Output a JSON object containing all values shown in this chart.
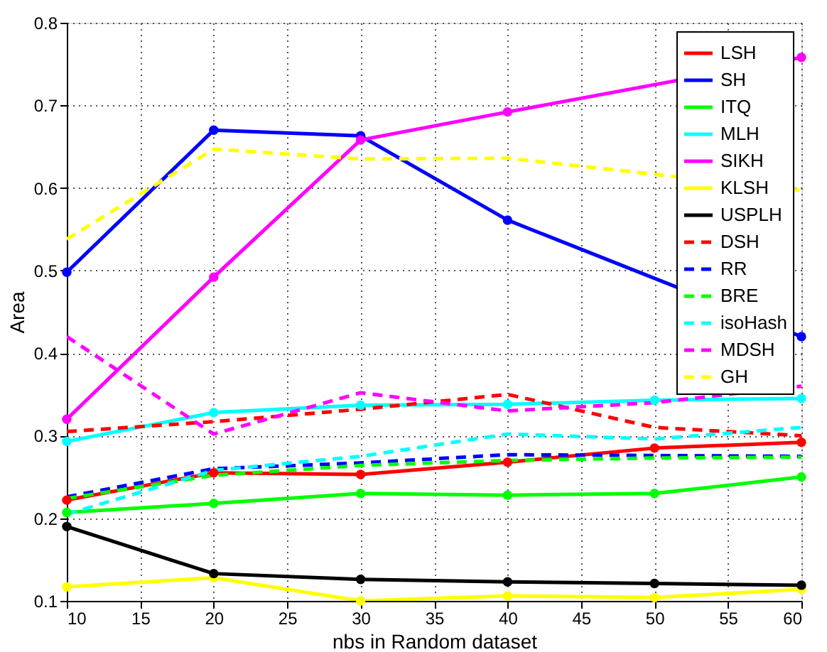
{
  "chart_data": {
    "type": "line",
    "xlabel": "nbs in  Random dataset",
    "ylabel": "Area",
    "x": [
      10,
      20,
      30,
      40,
      50,
      60
    ],
    "xlim": [
      10,
      60
    ],
    "xticks": [
      10,
      15,
      20,
      25,
      30,
      35,
      40,
      45,
      50,
      55,
      60
    ],
    "ylim": [
      0.1,
      0.8
    ],
    "yticks": [
      0.1,
      0.2,
      0.3,
      0.4,
      0.5,
      0.6,
      0.7,
      0.8
    ],
    "grid": true,
    "legend": "top right",
    "series": [
      {
        "name": "LSH",
        "color": "#ff0000",
        "marker": "circle",
        "line_style": "solid",
        "values": [
          0.222,
          0.255,
          0.253,
          0.268,
          0.285,
          0.292
        ]
      },
      {
        "name": "SH",
        "color": "#0000ff",
        "marker": "circle",
        "line_style": "solid",
        "values": [
          0.498,
          0.67,
          0.663,
          0.561,
          null,
          0.42
        ]
      },
      {
        "name": "ITQ",
        "color": "#00ff00",
        "marker": "circle",
        "line_style": "solid",
        "values": [
          0.207,
          0.218,
          0.23,
          0.228,
          0.23,
          0.25
        ]
      },
      {
        "name": "MLH",
        "color": "#00ffff",
        "marker": "circle",
        "line_style": "solid",
        "values": [
          0.293,
          0.328,
          0.337,
          0.338,
          0.343,
          0.345
        ]
      },
      {
        "name": "SIKH",
        "color": "#ff00ff",
        "marker": "circle",
        "line_style": "solid",
        "values": [
          0.32,
          0.492,
          0.658,
          0.692,
          null,
          0.758
        ]
      },
      {
        "name": "KLSH",
        "color": "#ffff00",
        "marker": "circle",
        "line_style": "solid",
        "values": [
          0.117,
          0.128,
          0.1,
          0.106,
          0.104,
          0.114
        ]
      },
      {
        "name": "USPLH",
        "color": "#000000",
        "marker": "circle",
        "line_style": "solid",
        "values": [
          0.19,
          0.133,
          0.126,
          0.123,
          0.121,
          0.119
        ]
      },
      {
        "name": "DSH",
        "color": "#ff0000",
        "marker": "none",
        "line_style": "dashed",
        "values": [
          0.305,
          0.317,
          0.332,
          0.35,
          0.31,
          0.3
        ]
      },
      {
        "name": "RR",
        "color": "#0000ff",
        "marker": "none",
        "line_style": "dashed",
        "values": [
          0.226,
          0.26,
          0.267,
          0.277,
          0.276,
          0.275
        ]
      },
      {
        "name": "BRE",
        "color": "#00ff00",
        "marker": "none",
        "line_style": "dashed",
        "values": [
          0.224,
          0.252,
          0.264,
          0.27,
          0.273,
          0.274
        ]
      },
      {
        "name": "isoHash",
        "color": "#00ffff",
        "marker": "none",
        "line_style": "dashed",
        "values": [
          0.205,
          0.258,
          0.275,
          0.302,
          0.296,
          0.31
        ]
      },
      {
        "name": "MDSH",
        "color": "#ff00ff",
        "marker": "none",
        "line_style": "dashed",
        "values": [
          0.42,
          0.302,
          0.352,
          0.33,
          0.34,
          0.36
        ]
      },
      {
        "name": "GH",
        "color": "#ffff00",
        "marker": "none",
        "line_style": "dashed",
        "values": [
          0.538,
          0.647,
          0.635,
          0.636,
          null,
          0.597
        ]
      }
    ]
  }
}
